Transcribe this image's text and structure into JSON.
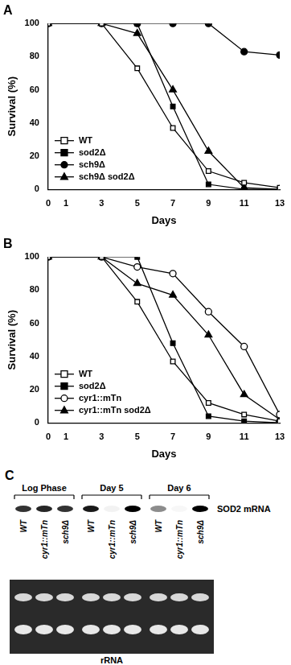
{
  "chart_data": [
    {
      "type": "line",
      "title": "A",
      "x_label": "Days",
      "y_label": "Survival (%)",
      "x": [
        0,
        3,
        5,
        7,
        9,
        11,
        13
      ],
      "series": [
        {
          "name": "WT",
          "color": "#000000",
          "marker": "square-open",
          "values": [
            100,
            100,
            73,
            37,
            11,
            4,
            1
          ]
        },
        {
          "name": "sod2Δ",
          "color": "#000000",
          "marker": "square",
          "values": [
            100,
            100,
            100,
            50,
            3,
            0,
            0
          ]
        },
        {
          "name": "sch9Δ",
          "color": "#000000",
          "marker": "circle",
          "values": [
            100,
            100,
            100,
            100,
            100,
            83,
            81
          ]
        },
        {
          "name": "sch9Δ sod2Δ",
          "color": "#000000",
          "marker": "triangle",
          "values": [
            100,
            100,
            94,
            60,
            23,
            1,
            0
          ]
        }
      ],
      "xlim": [
        0,
        13
      ],
      "xticks": [
        0,
        1,
        3,
        5,
        7,
        9,
        11,
        13
      ],
      "ylim": [
        0,
        100
      ],
      "yticks": [
        0,
        20,
        40,
        60,
        80,
        100
      ],
      "grid": false,
      "legend": "lower left"
    },
    {
      "type": "line",
      "title": "B",
      "x_label": "Days",
      "y_label": "Survival (%)",
      "x": [
        0,
        3,
        5,
        7,
        9,
        11,
        13
      ],
      "series": [
        {
          "name": "WT",
          "color": "#000000",
          "marker": "square-open",
          "values": [
            100,
            100,
            73,
            37,
            12,
            5,
            1
          ]
        },
        {
          "name": "sod2Δ",
          "color": "#000000",
          "marker": "square",
          "values": [
            100,
            100,
            100,
            48,
            4,
            1,
            0
          ]
        },
        {
          "name": "cyr1::mTn",
          "color": "#000000",
          "marker": "circle-open",
          "values": [
            100,
            100,
            94,
            90,
            67,
            46,
            5
          ]
        },
        {
          "name": "cyr1::mTn sod2Δ",
          "color": "#000000",
          "marker": "triangle",
          "values": [
            100,
            100,
            84,
            77,
            53,
            17,
            2
          ]
        }
      ],
      "xlim": [
        0,
        13
      ],
      "xticks": [
        0,
        1,
        3,
        5,
        7,
        9,
        11,
        13
      ],
      "ylim": [
        0,
        100
      ],
      "yticks": [
        0,
        20,
        40,
        60,
        80,
        100
      ],
      "grid": false,
      "legend": "lower left"
    }
  ],
  "blot": {
    "title": "C",
    "band_label": "SOD2 mRNA",
    "gel_label": "rRNA",
    "groups": [
      {
        "label": "Log Phase",
        "lanes": [
          "WT",
          "cyr1::mTn",
          "sch9Δ"
        ],
        "band_intensity": [
          0.8,
          0.85,
          0.8
        ]
      },
      {
        "label": "Day 5",
        "lanes": [
          "WT",
          "cyr1::mTn",
          "sch9Δ"
        ],
        "band_intensity": [
          0.9,
          0.05,
          1.0
        ]
      },
      {
        "label": "Day 6",
        "lanes": [
          "WT",
          "cyr1::mTn",
          "sch9Δ"
        ],
        "band_intensity": [
          0.45,
          0.03,
          1.0
        ]
      }
    ]
  }
}
